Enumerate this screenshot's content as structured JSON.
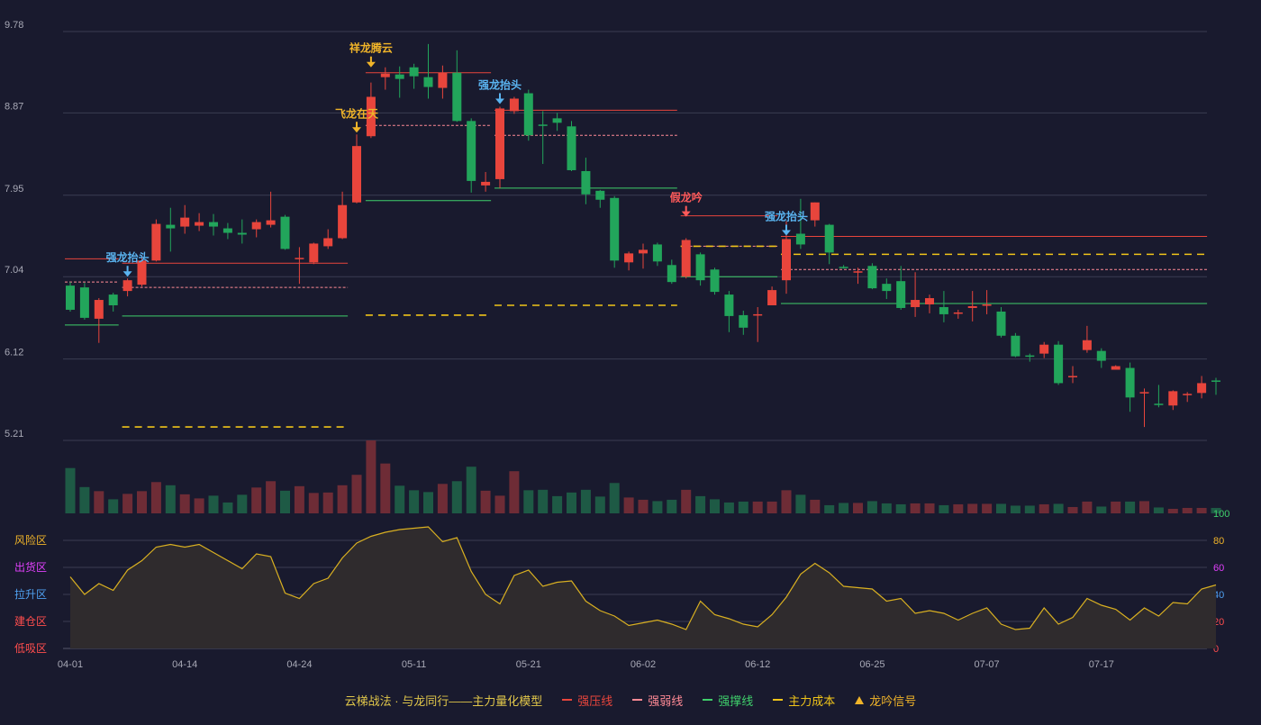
{
  "colors": {
    "background": "#191a2e",
    "grid": "#3a3c52",
    "up": "#e8453c",
    "down": "#22a55b",
    "up_volume": "#6e2c36",
    "down_volume": "#1e5a45",
    "oscillator_line": "#d9b021",
    "oscillator_fill": "#2f2b2d",
    "axis_text": "#a8a9b6",
    "resist": "#e8453c",
    "weak": "#ff8a95",
    "support": "#3fcf6b",
    "cost": "#f0c419",
    "signal_gold": "#f0b429",
    "signal_blue": "#5ab4f0",
    "signal_red": "#ff5a5a"
  },
  "chart_data": [
    {
      "type": "candlestick",
      "panel": "price",
      "y_ticks": [
        "9.78",
        "8.87",
        "7.95",
        "7.04",
        "6.12",
        "5.21"
      ],
      "ylim": [
        5.21,
        9.78
      ],
      "x_ticks": [
        "04-01",
        "04-14",
        "04-24",
        "05-11",
        "05-21",
        "06-02",
        "06-12",
        "06-25",
        "07-07",
        "07-17"
      ],
      "x_tick_index": [
        0,
        8,
        16,
        24,
        32,
        40,
        48,
        56,
        64,
        72
      ],
      "candles": [
        [
          6.94,
          6.67,
          6.98,
          6.65
        ],
        [
          6.92,
          6.58,
          6.97,
          6.56
        ],
        [
          6.57,
          6.78,
          6.8,
          6.3
        ],
        [
          6.84,
          6.72,
          6.86,
          6.65
        ],
        [
          6.88,
          7.0,
          7.02,
          6.82
        ],
        [
          6.95,
          7.22,
          7.28,
          6.93
        ],
        [
          7.22,
          7.63,
          7.68,
          7.21
        ],
        [
          7.62,
          7.58,
          7.81,
          7.32
        ],
        [
          7.6,
          7.7,
          7.84,
          7.52
        ],
        [
          7.61,
          7.65,
          7.75,
          7.55
        ],
        [
          7.65,
          7.6,
          7.74,
          7.5
        ],
        [
          7.58,
          7.53,
          7.64,
          7.46
        ],
        [
          7.53,
          7.51,
          7.68,
          7.41
        ],
        [
          7.57,
          7.65,
          7.68,
          7.48
        ],
        [
          7.62,
          7.67,
          7.99,
          7.59
        ],
        [
          7.71,
          7.35,
          7.73,
          7.34
        ],
        [
          7.25,
          7.25,
          7.37,
          6.96
        ],
        [
          7.2,
          7.41,
          7.42,
          7.18
        ],
        [
          7.38,
          7.47,
          7.57,
          7.35
        ],
        [
          7.47,
          7.84,
          7.99,
          7.46
        ],
        [
          7.87,
          8.5,
          8.63,
          7.86
        ],
        [
          8.61,
          9.05,
          9.21,
          8.59
        ],
        [
          9.27,
          9.31,
          9.38,
          9.13
        ],
        [
          9.3,
          9.25,
          9.39,
          9.04
        ],
        [
          9.38,
          9.28,
          9.42,
          9.14
        ],
        [
          9.27,
          9.16,
          9.64,
          9.03
        ],
        [
          9.15,
          9.32,
          9.4,
          9.03
        ],
        [
          9.32,
          8.78,
          9.57,
          8.77
        ],
        [
          8.78,
          8.11,
          8.81,
          7.98
        ],
        [
          8.06,
          8.1,
          8.21,
          7.99
        ],
        [
          8.13,
          8.92,
          8.94,
          8.03
        ],
        [
          8.89,
          9.03,
          9.05,
          8.86
        ],
        [
          9.09,
          8.62,
          9.13,
          8.56
        ],
        [
          8.74,
          8.73,
          8.89,
          8.3
        ],
        [
          8.81,
          8.76,
          8.87,
          8.67
        ],
        [
          8.72,
          8.23,
          8.78,
          8.22
        ],
        [
          8.22,
          7.96,
          8.37,
          7.85
        ],
        [
          8.0,
          7.9,
          8.01,
          7.81
        ],
        [
          7.92,
          7.22,
          7.94,
          7.14
        ],
        [
          7.2,
          7.3,
          7.32,
          7.11
        ],
        [
          7.3,
          7.34,
          7.41,
          7.13
        ],
        [
          7.4,
          7.21,
          7.42,
          7.16
        ],
        [
          7.17,
          6.98,
          7.23,
          6.96
        ],
        [
          7.04,
          7.45,
          7.47,
          7.02
        ],
        [
          7.29,
          7.0,
          7.31,
          6.94
        ],
        [
          7.12,
          6.87,
          7.14,
          6.84
        ],
        [
          6.84,
          6.6,
          6.88,
          6.42
        ],
        [
          6.61,
          6.47,
          6.66,
          6.39
        ],
        [
          6.61,
          6.62,
          6.7,
          6.31
        ],
        [
          6.72,
          6.89,
          6.93,
          6.81
        ],
        [
          7.0,
          7.46,
          7.66,
          6.85
        ],
        [
          7.52,
          7.4,
          7.91,
          7.35
        ],
        [
          7.67,
          7.87,
          7.87,
          7.6
        ],
        [
          7.62,
          7.31,
          7.63,
          7.18
        ],
        [
          7.15,
          7.14,
          7.17,
          7.13
        ],
        [
          7.09,
          7.1,
          7.14,
          6.96
        ],
        [
          7.16,
          6.91,
          7.19,
          6.9
        ],
        [
          6.96,
          6.88,
          7.02,
          6.79
        ],
        [
          6.99,
          6.69,
          7.16,
          6.67
        ],
        [
          6.7,
          6.78,
          7.09,
          6.59
        ],
        [
          6.73,
          6.8,
          6.84,
          6.63
        ],
        [
          6.7,
          6.62,
          6.88,
          6.53
        ],
        [
          6.63,
          6.64,
          6.67,
          6.57
        ],
        [
          6.69,
          6.71,
          6.88,
          6.54
        ],
        [
          6.72,
          6.73,
          6.89,
          6.62
        ],
        [
          6.65,
          6.38,
          6.7,
          6.36
        ],
        [
          6.38,
          6.15,
          6.41,
          6.14
        ],
        [
          6.16,
          6.15,
          6.18,
          6.09
        ],
        [
          6.18,
          6.28,
          6.31,
          6.13
        ],
        [
          6.28,
          5.85,
          6.32,
          5.83
        ],
        [
          5.93,
          5.93,
          6.04,
          5.85
        ],
        [
          6.22,
          6.33,
          6.49,
          6.19
        ],
        [
          6.21,
          6.1,
          6.24,
          6.02
        ],
        [
          6.0,
          6.04,
          6.05,
          6.01
        ],
        [
          6.02,
          5.69,
          6.08,
          5.53
        ],
        [
          5.74,
          5.75,
          5.79,
          5.36
        ],
        [
          5.62,
          5.61,
          5.83,
          5.58
        ],
        [
          5.6,
          5.76,
          5.77,
          5.55
        ],
        [
          5.73,
          5.73,
          5.75,
          5.64
        ],
        [
          5.74,
          5.85,
          5.93,
          5.68
        ],
        [
          5.88,
          5.87,
          5.91,
          5.72
        ]
      ],
      "overlays": [
        {
          "kind": "resist",
          "y": 7.19,
          "from": 4,
          "to": 19
        },
        {
          "kind": "weak",
          "y": 6.92,
          "from": 4,
          "to": 19
        },
        {
          "kind": "support",
          "y": 6.6,
          "from": 4,
          "to": 19
        },
        {
          "kind": "cost",
          "y": 5.36,
          "from": 4,
          "to": 19
        },
        {
          "kind": "resist",
          "y": 7.24,
          "from": 0,
          "to": 3
        },
        {
          "kind": "weak",
          "y": 6.98,
          "from": 0,
          "to": 3
        },
        {
          "kind": "support",
          "y": 6.5,
          "from": 0,
          "to": 3
        },
        {
          "kind": "resist",
          "y": 9.32,
          "from": 21,
          "to": 29
        },
        {
          "kind": "weak",
          "y": 8.73,
          "from": 21,
          "to": 29
        },
        {
          "kind": "support",
          "y": 7.89,
          "from": 21,
          "to": 29
        },
        {
          "kind": "cost",
          "y": 6.61,
          "from": 21,
          "to": 29
        },
        {
          "kind": "resist",
          "y": 8.9,
          "from": 30,
          "to": 42
        },
        {
          "kind": "weak",
          "y": 8.62,
          "from": 30,
          "to": 42
        },
        {
          "kind": "support",
          "y": 8.03,
          "from": 30,
          "to": 42
        },
        {
          "kind": "cost",
          "y": 6.72,
          "from": 30,
          "to": 42
        },
        {
          "kind": "resist",
          "y": 7.72,
          "from": 43,
          "to": 49
        },
        {
          "kind": "weak",
          "y": 7.38,
          "from": 43,
          "to": 49
        },
        {
          "kind": "support",
          "y": 7.04,
          "from": 43,
          "to": 49
        },
        {
          "kind": "cost",
          "y": 7.38,
          "from": 43,
          "to": 49
        },
        {
          "kind": "resist",
          "y": 7.49,
          "from": 50,
          "to": 79
        },
        {
          "kind": "weak",
          "y": 7.12,
          "from": 50,
          "to": 79
        },
        {
          "kind": "support",
          "y": 6.74,
          "from": 50,
          "to": 79
        },
        {
          "kind": "cost",
          "y": 7.29,
          "from": 50,
          "to": 79
        }
      ],
      "signals": [
        {
          "label": "强龙抬头",
          "index": 4,
          "price": 7.04,
          "color": "signal_blue"
        },
        {
          "label": "飞龙在天",
          "index": 20,
          "price": 8.65,
          "color": "signal_gold"
        },
        {
          "label": "祥龙腾云",
          "index": 21,
          "price": 9.38,
          "color": "signal_gold"
        },
        {
          "label": "强龙抬头",
          "index": 30,
          "price": 8.97,
          "color": "signal_blue"
        },
        {
          "label": "假龙吟",
          "index": 43,
          "price": 7.71,
          "color": "signal_red"
        },
        {
          "label": "强龙抬头",
          "index": 50,
          "price": 7.5,
          "color": "signal_blue"
        }
      ]
    },
    {
      "type": "bar",
      "panel": "volume",
      "values": [
        100,
        58,
        49,
        31,
        43,
        49,
        69,
        62,
        42,
        33,
        39,
        24,
        41,
        57,
        71,
        50,
        60,
        45,
        46,
        62,
        85,
        161,
        110,
        61,
        51,
        47,
        65,
        71,
        103,
        50,
        39,
        93,
        51,
        52,
        38,
        46,
        52,
        37,
        67,
        35,
        30,
        27,
        30,
        52,
        38,
        31,
        24,
        26,
        26,
        26,
        51,
        41,
        30,
        18,
        23,
        23,
        27,
        22,
        20,
        22,
        22,
        18,
        20,
        21,
        21,
        21,
        17,
        17,
        20,
        21,
        14,
        26,
        15,
        26,
        26,
        27,
        13,
        10,
        12,
        12,
        12
      ]
    },
    {
      "type": "area",
      "panel": "oscillator",
      "ylim": [
        0,
        100
      ],
      "y_ticks": [
        0,
        20,
        40,
        60,
        80,
        100
      ],
      "zone_labels": [
        "风险区",
        "出货区",
        "拉升区",
        "建仓区",
        "低吸区"
      ],
      "zone_label_colors": [
        "#f0b429",
        "#e040fb",
        "#4fa0f0",
        "#ff4d4d",
        "#ff4d4d"
      ],
      "values": [
        53,
        40,
        48,
        43,
        58,
        65,
        75,
        77,
        75,
        77,
        71,
        65,
        59,
        70,
        68,
        41,
        37,
        48,
        52,
        67,
        78,
        83,
        86,
        88,
        89,
        90,
        79,
        82,
        57,
        40,
        33,
        54,
        58,
        46,
        49,
        50,
        35,
        28,
        24,
        17,
        19,
        21,
        18,
        14,
        35,
        25,
        22,
        18,
        16,
        25,
        38,
        55,
        63,
        56,
        46,
        45,
        44,
        35,
        37,
        26,
        28,
        26,
        21,
        26,
        30,
        18,
        14,
        15,
        30,
        18,
        23,
        37,
        32,
        29,
        21,
        30,
        24,
        34,
        33,
        44,
        47
      ]
    },
    {
      "type": "legend",
      "title": "云梯战法 · 与龙同行——主力量化模型",
      "entries": [
        "强压线",
        "强弱线",
        "强撑线",
        "主力成本",
        "龙吟信号"
      ]
    }
  ]
}
